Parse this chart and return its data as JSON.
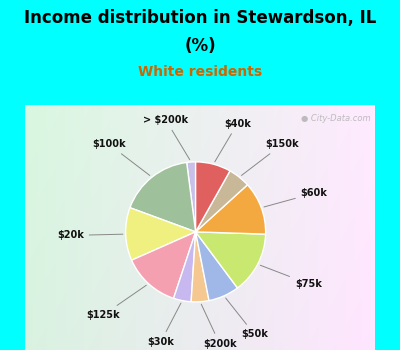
{
  "title_line1": "Income distribution in Stewardson, IL",
  "title_line2": "(%)",
  "subtitle": "White residents",
  "bg_color": "#00FFFF",
  "labels": [
    "> $200k",
    "$100k",
    "$20k",
    "$125k",
    "$30k",
    "$200k",
    "$50k",
    "$75k",
    "$60k",
    "$150k",
    "$40k"
  ],
  "sizes": [
    2,
    17,
    12,
    13,
    4,
    4,
    7,
    14,
    12,
    5,
    8
  ],
  "colors": [
    "#c8c0e8",
    "#9ec09a",
    "#f0f080",
    "#f4a0b0",
    "#c8b8f0",
    "#f4c890",
    "#a0b8e8",
    "#c8e870",
    "#f4a840",
    "#c8b898",
    "#e06060"
  ],
  "startangle": 90,
  "title_fontsize": 12,
  "subtitle_fontsize": 10,
  "label_fontsize": 7
}
